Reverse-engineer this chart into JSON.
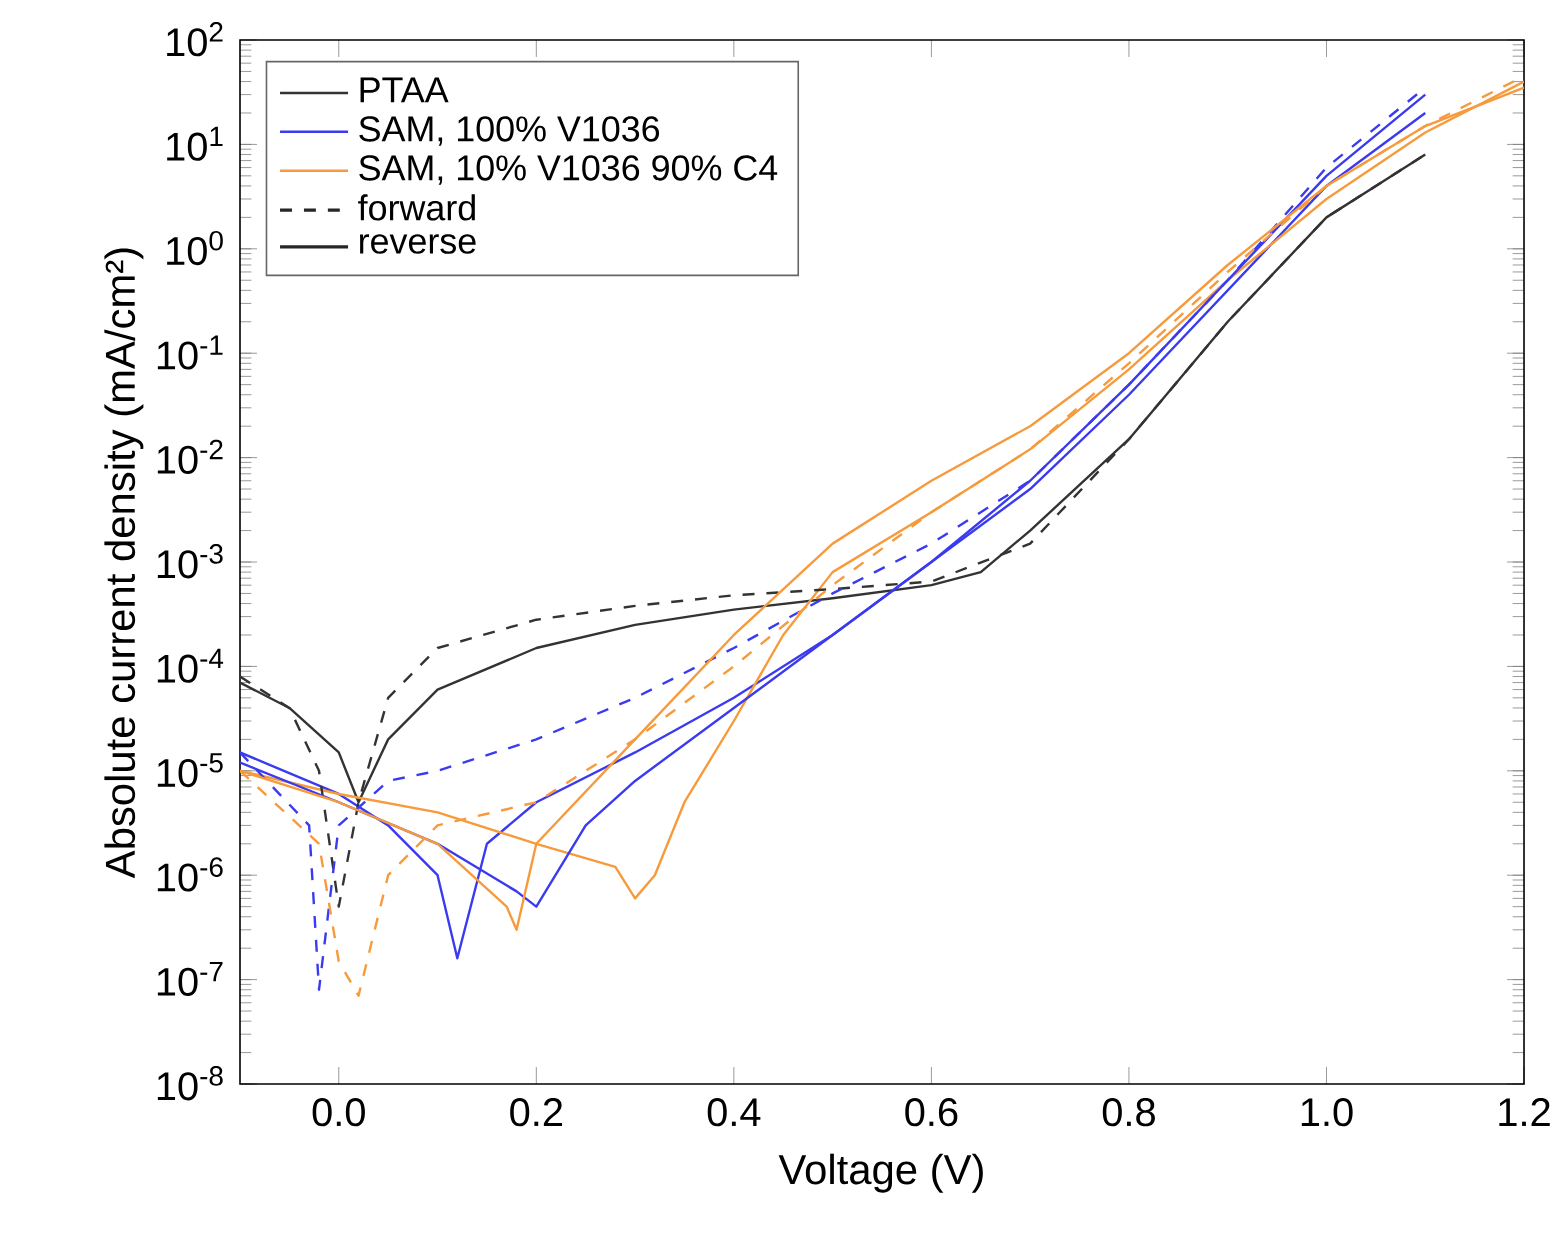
{
  "chart_data": {
    "type": "line",
    "xlabel": "Voltage (V)",
    "ylabel": "Absolute current density (mA/cm²)",
    "log": "y",
    "xlim": [
      -0.1,
      1.2
    ],
    "ylim": [
      1e-08,
      100
    ],
    "xticks": [
      {
        "value": 0,
        "label": "0.0"
      },
      {
        "value": 0.2,
        "label": "0.2"
      },
      {
        "value": 0.4,
        "label": "0.4"
      },
      {
        "value": 0.6,
        "label": "0.6"
      },
      {
        "value": 0.8,
        "label": "0.8"
      },
      {
        "value": 1.0,
        "label": "1.0"
      },
      {
        "value": 1.2,
        "label": "1.2"
      }
    ],
    "yticks": [
      {
        "value": 1e-08,
        "label": "10$^{-8}$"
      },
      {
        "value": 1e-07,
        "label": "10$^{-7}$"
      },
      {
        "value": 1e-06,
        "label": "10$^{-6}$"
      },
      {
        "value": 1e-05,
        "label": "10$^{-5}$"
      },
      {
        "value": 0.0001,
        "label": "10$^{-4}$"
      },
      {
        "value": 0.001,
        "label": "10$^{-3}$"
      },
      {
        "value": 0.01,
        "label": "10$^{-2}$"
      },
      {
        "value": 0.1,
        "label": "10$^{-1}$"
      },
      {
        "value": 1,
        "label": "10$^{0}$"
      },
      {
        "value": 10,
        "label": "10$^{1}$"
      },
      {
        "value": 100,
        "label": "10$^{2}$"
      }
    ],
    "grid": false,
    "legend": "top left",
    "marker": "none",
    "annotations": [
      "forward",
      "reverse"
    ],
    "series": [
      {
        "name": "PTAA",
        "color": "#333333",
        "line_style": "solid",
        "x": [
          -0.1,
          -0.05,
          0,
          0.02,
          0.05,
          0.1,
          0.2,
          0.3,
          0.4,
          0.5,
          0.6,
          0.65,
          0.7,
          0.8,
          0.9,
          1.0,
          1.05,
          1.1
        ],
        "values": [
          7e-05,
          4e-05,
          1.5e-05,
          5e-06,
          2e-05,
          6e-05,
          0.00015,
          0.00025,
          0.00035,
          0.00045,
          0.0006,
          0.0008,
          0.002,
          0.015,
          0.2,
          2,
          4,
          8
        ]
      },
      {
        "name": "SAM, 100% V1036",
        "color": "#3a3af0",
        "line_style": "solid",
        "x": [
          -0.1,
          0,
          0.05,
          0.1,
          0.12,
          0.15,
          0.2,
          0.3,
          0.4,
          0.5,
          0.6,
          0.7,
          0.8,
          0.9,
          1.0,
          1.1
        ],
        "values": [
          1.5e-05,
          6e-06,
          3e-06,
          1e-06,
          1.6e-07,
          2e-06,
          5e-06,
          1.5e-05,
          5e-05,
          0.0002,
          0.001,
          0.005,
          0.04,
          0.4,
          4,
          20
        ]
      },
      {
        "name": "SAM, 10% V1036 90% C4",
        "color": "#f79a3c",
        "line_style": "solid",
        "x": [
          -0.1,
          0,
          0.1,
          0.2,
          0.28,
          0.3,
          0.32,
          0.35,
          0.4,
          0.45,
          0.5,
          0.6,
          0.7,
          0.8,
          0.9,
          1.0,
          1.1,
          1.2
        ],
        "values": [
          1e-05,
          6e-06,
          4e-06,
          2e-06,
          1.2e-06,
          6e-07,
          1e-06,
          5e-06,
          3e-05,
          0.0002,
          0.0008,
          0.003,
          0.012,
          0.07,
          0.5,
          3,
          13,
          40
        ]
      },
      {
        "color": "#333333",
        "line_style": "dashed",
        "x": [
          -0.1,
          -0.05,
          -0.02,
          0,
          0.02,
          0.05,
          0.1,
          0.2,
          0.3,
          0.4,
          0.5,
          0.6,
          0.7,
          0.8,
          0.9,
          1.0,
          1.1
        ],
        "values": [
          8e-05,
          4e-05,
          1e-05,
          5e-07,
          5e-06,
          5e-05,
          0.00015,
          0.00028,
          0.00038,
          0.00048,
          0.00055,
          0.00065,
          0.0015,
          0.015,
          0.2,
          2,
          8
        ]
      },
      {
        "color": "#3a3af0",
        "line_style": "dashed",
        "x": [
          -0.1,
          -0.03,
          -0.02,
          0,
          0.05,
          0.1,
          0.2,
          0.3,
          0.4,
          0.5,
          0.6,
          0.7,
          0.8,
          0.9,
          1.0,
          1.1
        ],
        "values": [
          1.5e-05,
          3e-06,
          8e-08,
          3e-06,
          8e-06,
          1e-05,
          2e-05,
          5e-05,
          0.00015,
          0.0005,
          0.0015,
          0.006,
          0.05,
          0.5,
          6,
          35
        ]
      },
      {
        "color": "#3a3af0",
        "line_style": "solid",
        "x": [
          -0.1,
          0,
          0.1,
          0.18,
          0.2,
          0.25,
          0.3,
          0.4,
          0.5,
          0.6,
          0.7,
          0.8,
          0.9,
          1.0,
          1.1
        ],
        "values": [
          1.2e-05,
          5e-06,
          2e-06,
          7e-07,
          5e-07,
          3e-06,
          8e-06,
          4e-05,
          0.0002,
          0.001,
          0.006,
          0.05,
          0.5,
          5,
          30
        ]
      },
      {
        "color": "#f79a3c",
        "line_style": "dashed",
        "x": [
          -0.1,
          -0.02,
          0,
          0.02,
          0.05,
          0.1,
          0.2,
          0.3,
          0.4,
          0.5,
          0.6,
          0.7,
          0.8,
          0.9,
          1.0,
          1.1,
          1.2
        ],
        "values": [
          1e-05,
          2e-06,
          1.5e-07,
          7e-08,
          1e-06,
          3e-06,
          5e-06,
          2e-05,
          0.0001,
          0.0006,
          0.003,
          0.012,
          0.08,
          0.6,
          4,
          15,
          45
        ]
      },
      {
        "color": "#f79a3c",
        "line_style": "solid",
        "x": [
          -0.1,
          0,
          0.1,
          0.17,
          0.18,
          0.2,
          0.3,
          0.4,
          0.5,
          0.6,
          0.7,
          0.8,
          0.9,
          1.0,
          1.1,
          1.2
        ],
        "values": [
          1e-05,
          5e-06,
          2e-06,
          5e-07,
          3e-07,
          2e-06,
          2e-05,
          0.0002,
          0.0015,
          0.006,
          0.02,
          0.1,
          0.7,
          4,
          15,
          35
        ]
      }
    ]
  }
}
